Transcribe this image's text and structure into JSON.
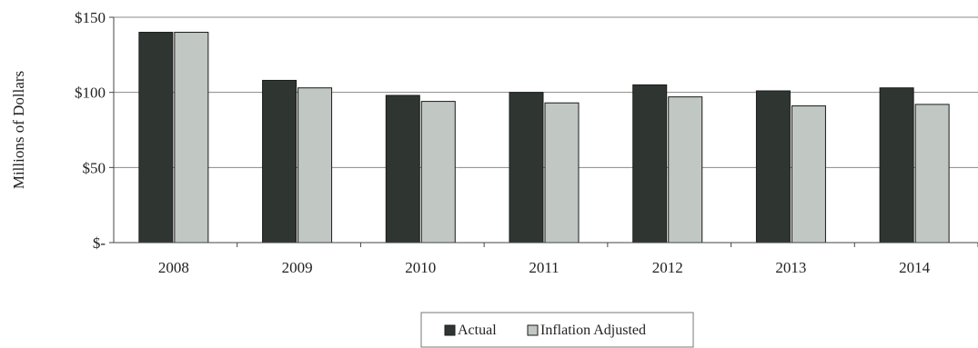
{
  "chart_data": {
    "type": "bar",
    "categories": [
      "2008",
      "2009",
      "2010",
      "2011",
      "2012",
      "2013",
      "2014"
    ],
    "series": [
      {
        "name": "Actual",
        "values": [
          140,
          108,
          98,
          100,
          105,
          101,
          103
        ],
        "color": "#2f3632"
      },
      {
        "name": "Inflation Adjusted",
        "values": [
          140,
          103,
          94,
          93,
          97,
          91,
          92
        ],
        "color": "#c1c7c2"
      }
    ],
    "ylabel": "Millions of Dollars",
    "ylim": [
      0,
      150
    ],
    "yticks": [
      {
        "value": 0,
        "label": "$-"
      },
      {
        "value": 50,
        "label": "$50"
      },
      {
        "value": 100,
        "label": "$100"
      },
      {
        "value": 150,
        "label": "$150"
      }
    ],
    "grid": true,
    "legend_position": "bottom-center"
  }
}
